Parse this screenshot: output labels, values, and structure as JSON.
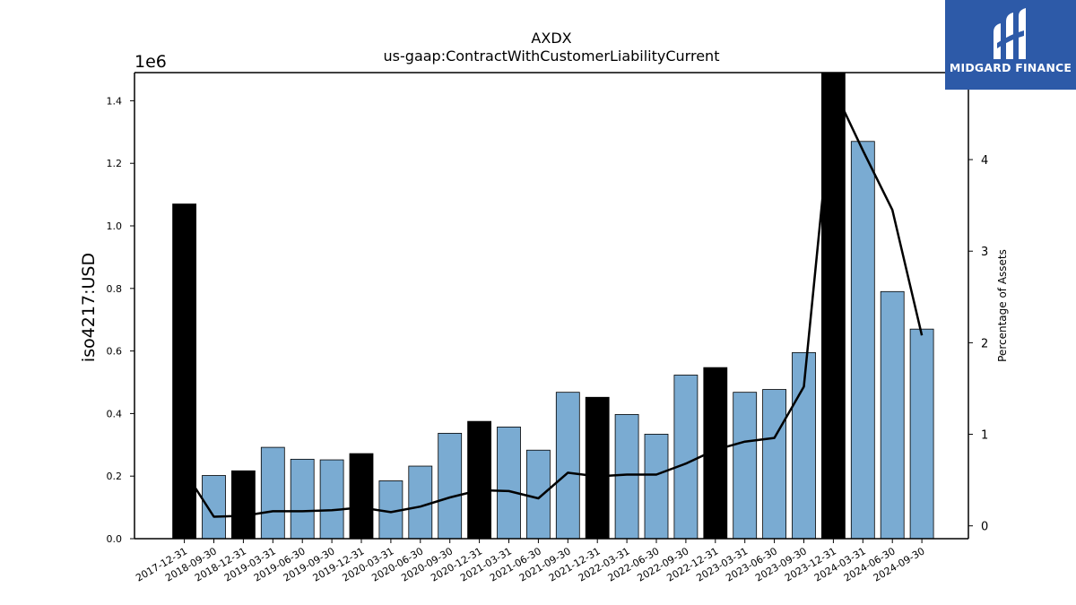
{
  "chart_data": {
    "type": "bar",
    "title": "AXDX",
    "subtitle": "us-gaap:ContractWithCustomerLiabilityCurrent",
    "ylabel": "iso4217:USD",
    "y2label": "Percentage of Assets",
    "y_offset_label": "1e6",
    "ylim": [
      0,
      1490000
    ],
    "y2lim": [
      -0.14,
      4.95
    ],
    "yticks": [
      0.0,
      0.2,
      0.4,
      0.6,
      0.8,
      1.0,
      1.2,
      1.4
    ],
    "y2ticks": [
      0,
      1,
      2,
      3,
      4
    ],
    "categories": [
      "2017-12-31",
      "2018-09-30",
      "2018-12-31",
      "2019-03-31",
      "2019-06-30",
      "2019-09-30",
      "2019-12-31",
      "2020-03-31",
      "2020-06-30",
      "2020-09-30",
      "2020-12-31",
      "2021-03-31",
      "2021-06-30",
      "2021-09-30",
      "2021-12-31",
      "2022-03-31",
      "2022-06-30",
      "2022-09-30",
      "2022-12-31",
      "2023-03-31",
      "2023-06-30",
      "2023-09-30",
      "2023-12-31",
      "2024-03-31",
      "2024-06-30",
      "2024-09-30"
    ],
    "series": [
      {
        "values": [
          1070000,
          202000,
          217000,
          292000,
          254000,
          252000,
          272000,
          185000,
          232000,
          337000,
          375000,
          357000,
          283000,
          468000,
          452000,
          397000,
          334000,
          523000,
          547000,
          468000,
          477000,
          595000,
          1490000,
          1270000,
          790000,
          670000
        ],
        "year_end": [
          true,
          false,
          true,
          false,
          false,
          false,
          true,
          false,
          false,
          false,
          true,
          false,
          false,
          false,
          true,
          false,
          false,
          false,
          true,
          false,
          false,
          false,
          true,
          false,
          false,
          false
        ],
        "colors": {
          "year_end": "#000000",
          "other": "#7aabd2"
        }
      },
      {
        "axis": "right",
        "values": [
          0.6,
          0.1,
          0.11,
          0.16,
          0.16,
          0.17,
          0.2,
          0.15,
          0.21,
          0.31,
          0.39,
          0.38,
          0.3,
          0.58,
          0.54,
          0.56,
          0.56,
          0.68,
          0.83,
          0.92,
          0.96,
          1.52,
          4.78,
          4.1,
          3.45,
          2.08
        ],
        "color": "#000000"
      }
    ],
    "grid": false
  },
  "logo": {
    "text": "MIDGARD FINANCE",
    "background": "#2d5aa8"
  }
}
